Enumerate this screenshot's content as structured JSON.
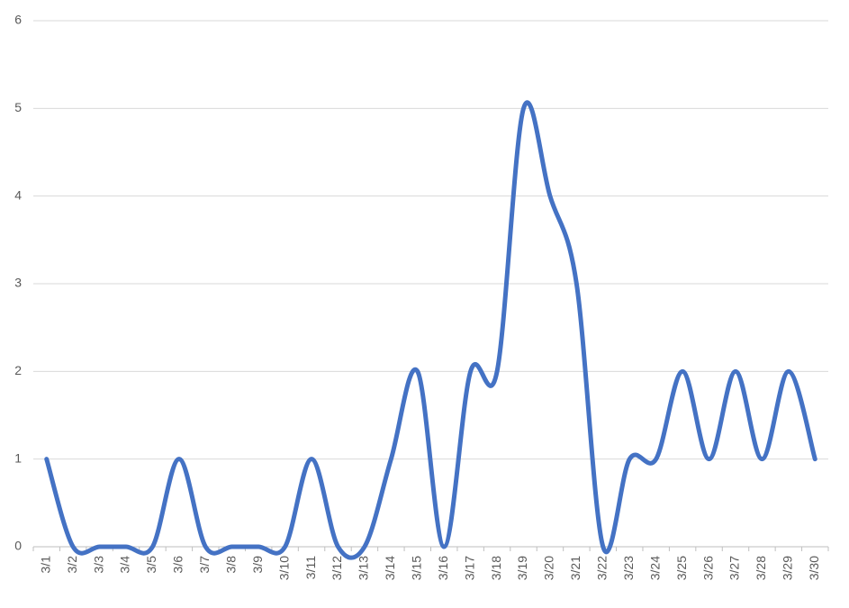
{
  "chart_data": {
    "type": "line",
    "categories": [
      "3/1",
      "3/2",
      "3/3",
      "3/4",
      "3/5",
      "3/6",
      "3/7",
      "3/8",
      "3/9",
      "3/10",
      "3/11",
      "3/12",
      "3/13",
      "3/14",
      "3/15",
      "3/16",
      "3/17",
      "3/18",
      "3/19",
      "3/20",
      "3/21",
      "3/22",
      "3/23",
      "3/24",
      "3/25",
      "3/26",
      "3/27",
      "3/28",
      "3/29",
      "3/30"
    ],
    "values": [
      1,
      0,
      0,
      0,
      0,
      1,
      0,
      0,
      0,
      0,
      1,
      0,
      0,
      1,
      2,
      0,
      2,
      2,
      5,
      4,
      3,
      0,
      1,
      1,
      2,
      1,
      2,
      1,
      2,
      1
    ],
    "color": "#4472c4",
    "ylim": [
      0,
      6
    ],
    "yticks": [
      0,
      1,
      2,
      3,
      4,
      5,
      6
    ],
    "grid": true,
    "smooth": true
  }
}
